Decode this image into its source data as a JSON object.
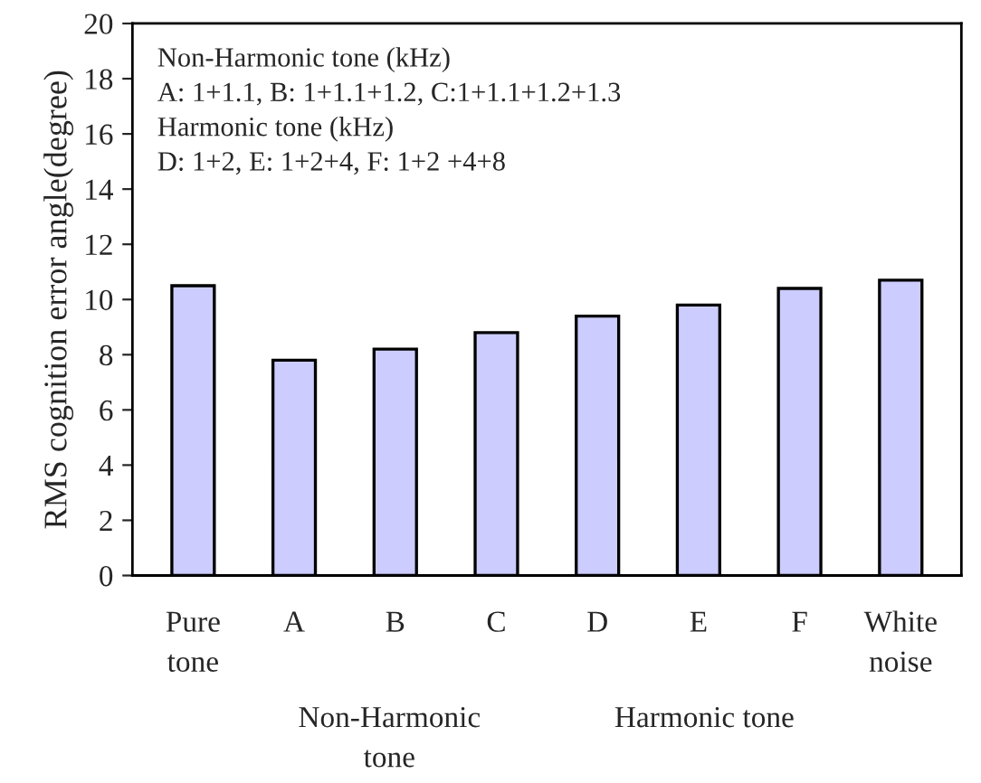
{
  "chart_data": {
    "type": "bar",
    "ylabel": "RMS cognition error angle(degree)",
    "categories": [
      "Pure tone",
      "A",
      "B",
      "C",
      "D",
      "E",
      "F",
      "White noise"
    ],
    "values": [
      10.5,
      7.8,
      8.2,
      8.8,
      9.4,
      9.8,
      10.4,
      10.7
    ],
    "color": "#ccccff",
    "ylim": [
      0,
      20
    ],
    "yticks": [
      0,
      2,
      4,
      6,
      8,
      10,
      12,
      14,
      16,
      18,
      20
    ],
    "grid": false,
    "annotations": [
      "Non-Harmonic tone (kHz)\nA: 1+1.1, B: 1+1.1+1.2, C:1+1.1+1.2+1.3\nHarmonic tone (kHz)\nD: 1+2, E: 1+2+4, F: 1+2 +4+8",
      "Non-Harmonic\ntone",
      "Harmonic tone"
    ]
  }
}
